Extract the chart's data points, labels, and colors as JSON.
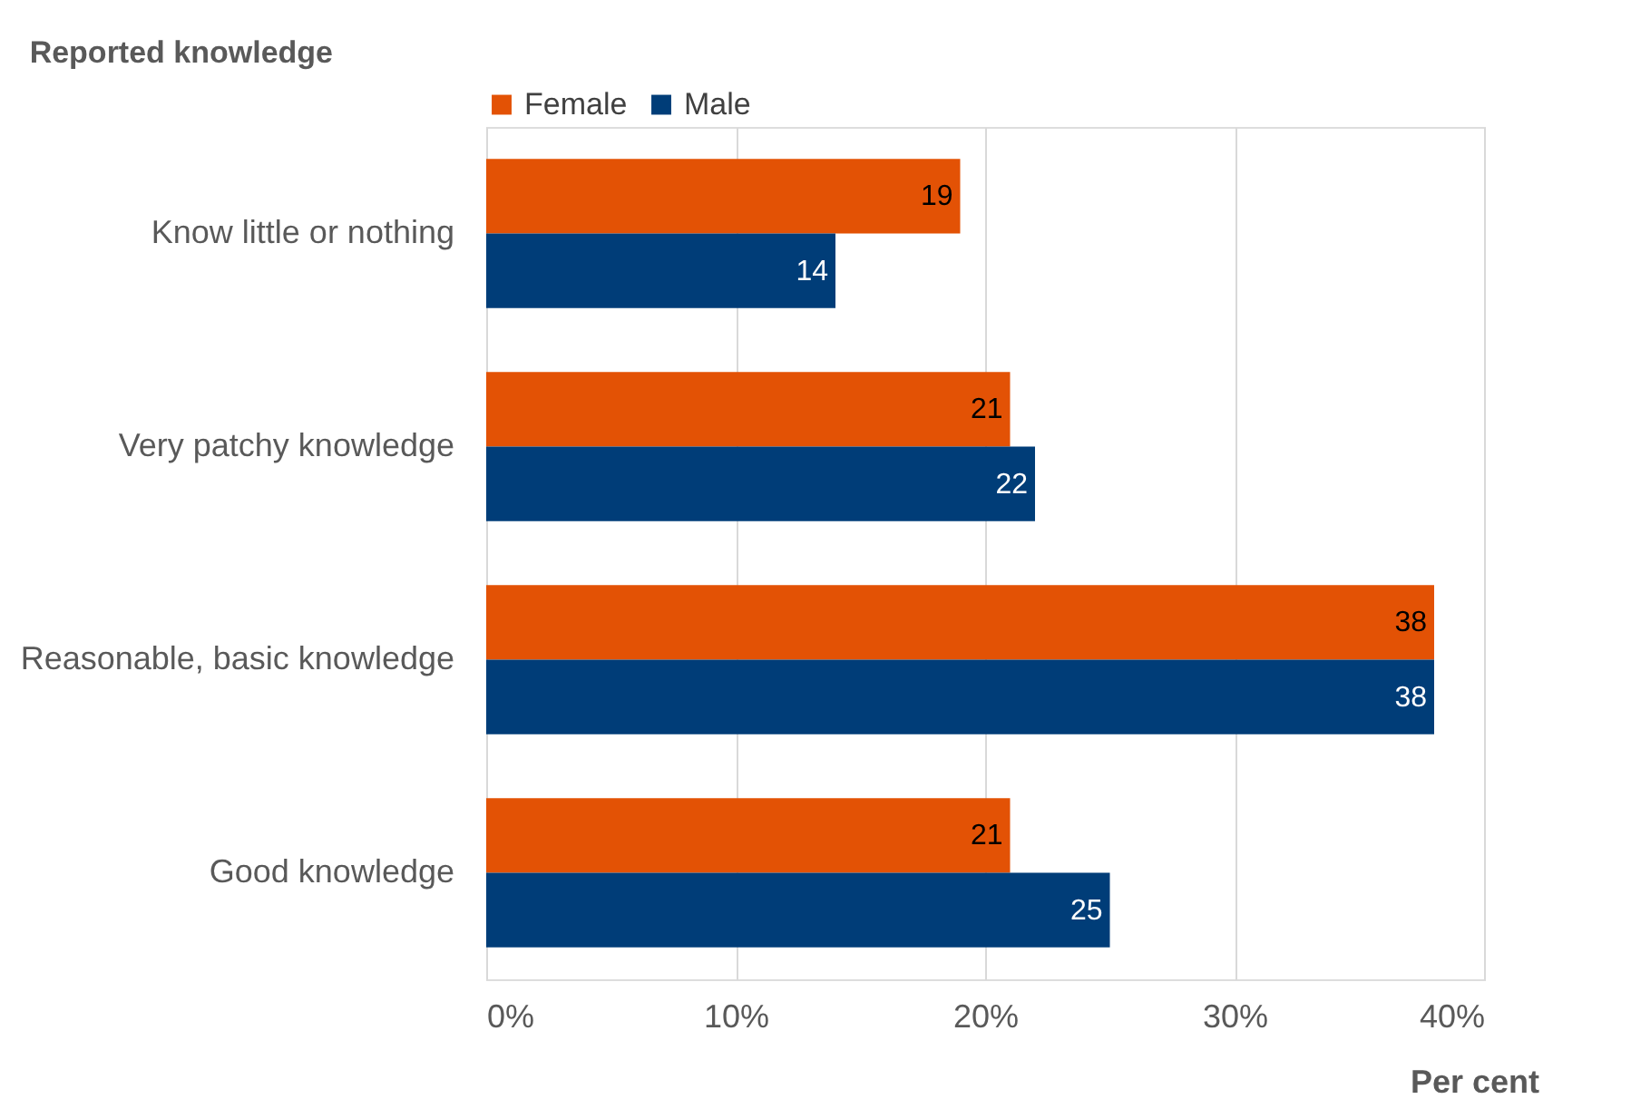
{
  "chart_data": {
    "type": "bar",
    "orientation": "horizontal",
    "ylabel": "Reported knowledge",
    "xlabel": "Per cent",
    "categories": [
      "Know little or nothing",
      "Very patchy knowledge",
      "Reasonable, basic knowledge",
      "Good knowledge"
    ],
    "series": [
      {
        "name": "Female",
        "color": "#e35205",
        "values": [
          19,
          21,
          38,
          21
        ]
      },
      {
        "name": "Male",
        "color": "#003d78",
        "values": [
          14,
          22,
          38,
          25
        ]
      }
    ],
    "xlim": [
      0,
      40
    ],
    "xticks": [
      {
        "value": 0,
        "label": "0%"
      },
      {
        "value": 10,
        "label": "10%"
      },
      {
        "value": 20,
        "label": "20%"
      },
      {
        "value": 30,
        "label": "30%"
      },
      {
        "value": 40,
        "label": "40%"
      }
    ],
    "grid": "x",
    "legend": "top",
    "data_labels": true
  }
}
